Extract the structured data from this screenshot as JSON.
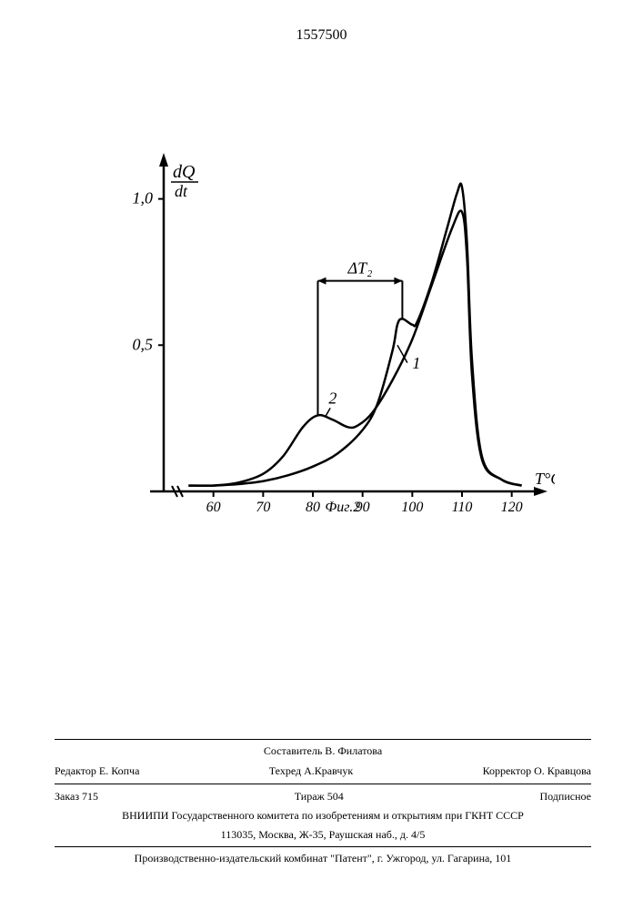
{
  "page_number": "1557500",
  "chart": {
    "type": "line",
    "ylabel": "dQ/dt",
    "xlabel": "T°C",
    "figure_label": "Фиг.2",
    "yticks": [
      0.5,
      1.0
    ],
    "ytick_labels": [
      "0,5",
      "1,0"
    ],
    "xticks": [
      60,
      70,
      80,
      90,
      100,
      110,
      120
    ],
    "annotation_dt2": "ΔT₂",
    "dt2_range_x": [
      81,
      98
    ],
    "series": [
      {
        "id": "1",
        "label": "1",
        "color": "#000000",
        "line_width": 2.5,
        "points": [
          [
            55,
            0.02
          ],
          [
            60,
            0.02
          ],
          [
            65,
            0.025
          ],
          [
            70,
            0.035
          ],
          [
            75,
            0.055
          ],
          [
            80,
            0.085
          ],
          [
            85,
            0.13
          ],
          [
            90,
            0.21
          ],
          [
            93,
            0.3
          ],
          [
            96,
            0.48
          ],
          [
            97,
            0.57
          ],
          [
            98,
            0.59
          ],
          [
            100,
            0.57
          ],
          [
            101,
            0.58
          ],
          [
            104,
            0.72
          ],
          [
            107,
            0.9
          ],
          [
            109,
            1.02
          ],
          [
            110,
            1.04
          ],
          [
            111,
            0.85
          ],
          [
            112,
            0.45
          ],
          [
            114,
            0.12
          ],
          [
            118,
            0.04
          ],
          [
            122,
            0.02
          ]
        ]
      },
      {
        "id": "2",
        "label": "2",
        "color": "#000000",
        "line_width": 2.5,
        "points": [
          [
            55,
            0.02
          ],
          [
            60,
            0.02
          ],
          [
            65,
            0.03
          ],
          [
            70,
            0.06
          ],
          [
            74,
            0.12
          ],
          [
            78,
            0.22
          ],
          [
            81,
            0.26
          ],
          [
            84,
            0.245
          ],
          [
            87,
            0.22
          ],
          [
            89,
            0.225
          ],
          [
            92,
            0.27
          ],
          [
            96,
            0.38
          ],
          [
            100,
            0.52
          ],
          [
            104,
            0.71
          ],
          [
            108,
            0.9
          ],
          [
            110,
            0.955
          ],
          [
            111,
            0.8
          ],
          [
            112,
            0.4
          ],
          [
            114,
            0.11
          ],
          [
            118,
            0.04
          ],
          [
            122,
            0.02
          ]
        ]
      }
    ],
    "axis_color": "#000000",
    "axis_width": 2.5,
    "background_color": "#ffffff"
  },
  "footer": {
    "compiler": "Составитель В. Филатова",
    "editor_label": "Редактор Е. Копча",
    "techred": "Техред А.Кравчук",
    "corrector": "Корректор О. Кравцова",
    "order": "Заказ 715",
    "tirage": "Тираж 504",
    "subscription": "Подписное",
    "org1": "ВНИИПИ Государственного комитета по изобретениям и открытиям при ГКНТ СССР",
    "addr1": "113035, Москва, Ж-35, Раушская наб., д. 4/5",
    "org2": "Производственно-издательский комбинат \"Патент\", г. Ужгород, ул. Гагарина, 101"
  }
}
